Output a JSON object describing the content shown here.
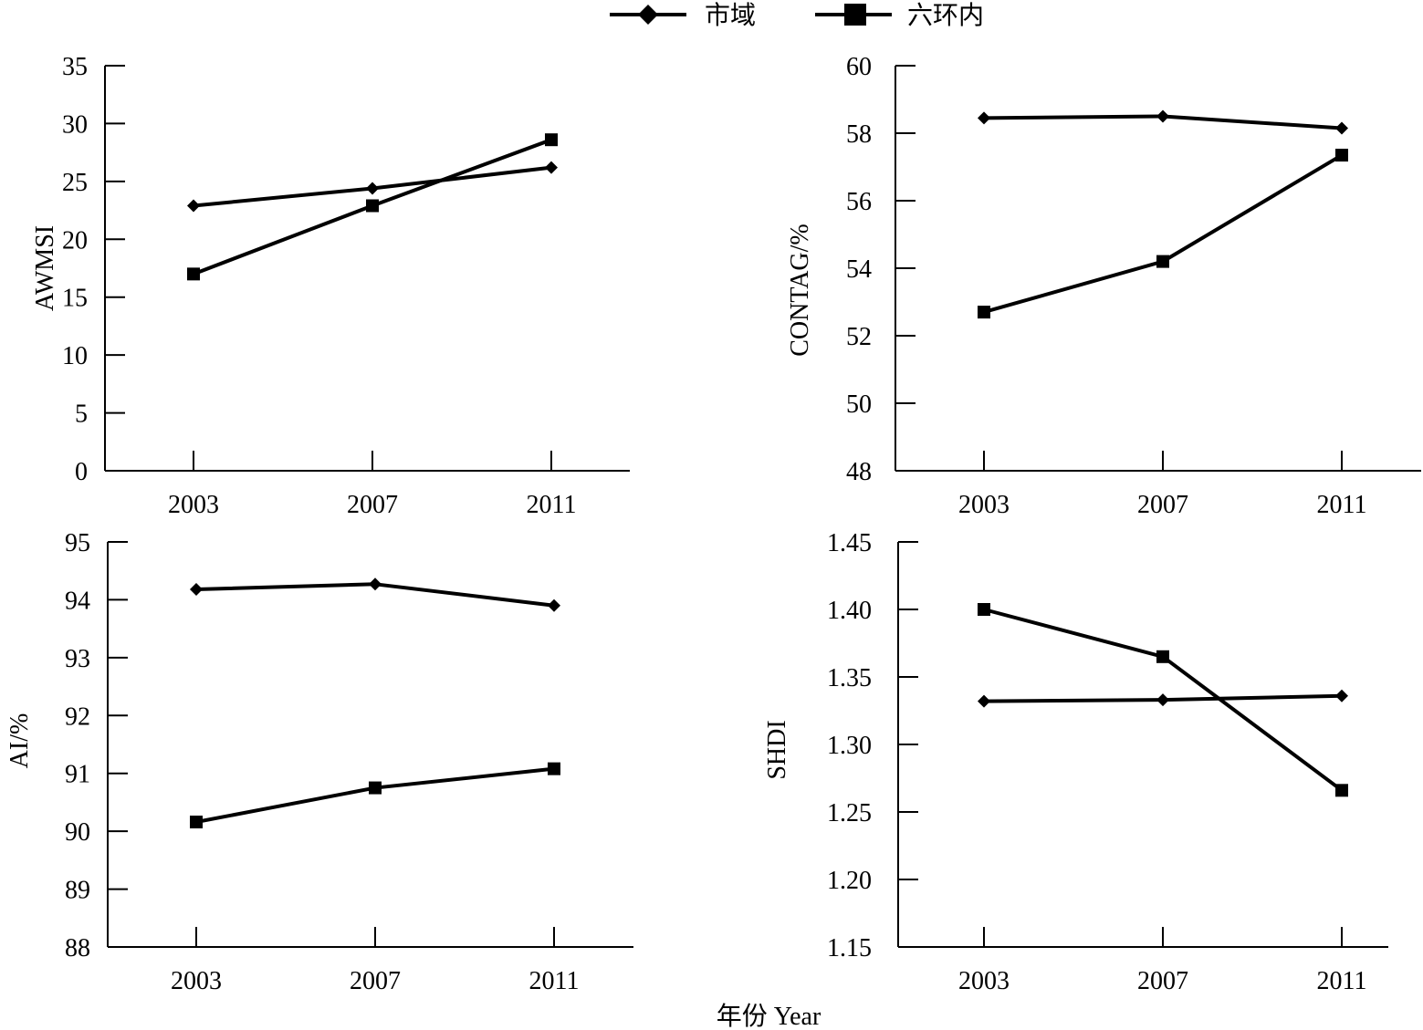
{
  "legend": [
    {
      "label": "市域",
      "marker": "diamond"
    },
    {
      "label": "六环内",
      "marker": "square"
    }
  ],
  "x_axis_title": "年份 Year",
  "chart_data": [
    {
      "type": "line",
      "categories": [
        "2003",
        "2007",
        "2011"
      ],
      "ylabel": "AWMSI",
      "ylim": [
        0,
        35
      ],
      "yticks": [
        0,
        5,
        10,
        15,
        20,
        25,
        30,
        35
      ],
      "ytick_labels": [
        "0",
        "5",
        "10",
        "15",
        "20",
        "25",
        "30",
        "35"
      ],
      "series": [
        {
          "name": "市域",
          "marker": "diamond",
          "values": [
            22.9,
            24.4,
            26.2
          ]
        },
        {
          "name": "六环内",
          "marker": "square",
          "values": [
            17.0,
            22.9,
            28.6
          ]
        }
      ]
    },
    {
      "type": "line",
      "categories": [
        "2003",
        "2007",
        "2011"
      ],
      "ylabel": "CONTAG/%",
      "ylim": [
        48,
        60
      ],
      "yticks": [
        48,
        50,
        52,
        54,
        56,
        58,
        60
      ],
      "ytick_labels": [
        "48",
        "50",
        "52",
        "54",
        "56",
        "58",
        "60"
      ],
      "series": [
        {
          "name": "市域",
          "marker": "diamond",
          "values": [
            58.45,
            58.5,
            58.15
          ]
        },
        {
          "name": "六环内",
          "marker": "square",
          "values": [
            52.7,
            54.2,
            57.35
          ]
        }
      ]
    },
    {
      "type": "line",
      "categories": [
        "2003",
        "2007",
        "2011"
      ],
      "ylabel": "AI/%",
      "ylim": [
        88,
        95
      ],
      "yticks": [
        88,
        89,
        90,
        91,
        92,
        93,
        94,
        95
      ],
      "ytick_labels": [
        "88",
        "89",
        "90",
        "91",
        "92",
        "93",
        "94",
        "95"
      ],
      "series": [
        {
          "name": "市域",
          "marker": "diamond",
          "values": [
            94.18,
            94.27,
            93.9
          ]
        },
        {
          "name": "六环内",
          "marker": "square",
          "values": [
            90.16,
            90.75,
            91.08
          ]
        }
      ]
    },
    {
      "type": "line",
      "categories": [
        "2003",
        "2007",
        "2011"
      ],
      "ylabel": "SHDI",
      "ylim": [
        1.15,
        1.45
      ],
      "yticks": [
        1.15,
        1.2,
        1.25,
        1.3,
        1.35,
        1.4,
        1.45
      ],
      "ytick_labels": [
        "1.15",
        "1.20",
        "1.25",
        "1.30",
        "1.35",
        "1.40",
        "1.45"
      ],
      "series": [
        {
          "name": "市域",
          "marker": "diamond",
          "values": [
            1.332,
            1.333,
            1.336
          ]
        },
        {
          "name": "六环内",
          "marker": "square",
          "values": [
            1.4,
            1.365,
            1.266
          ]
        }
      ]
    }
  ]
}
